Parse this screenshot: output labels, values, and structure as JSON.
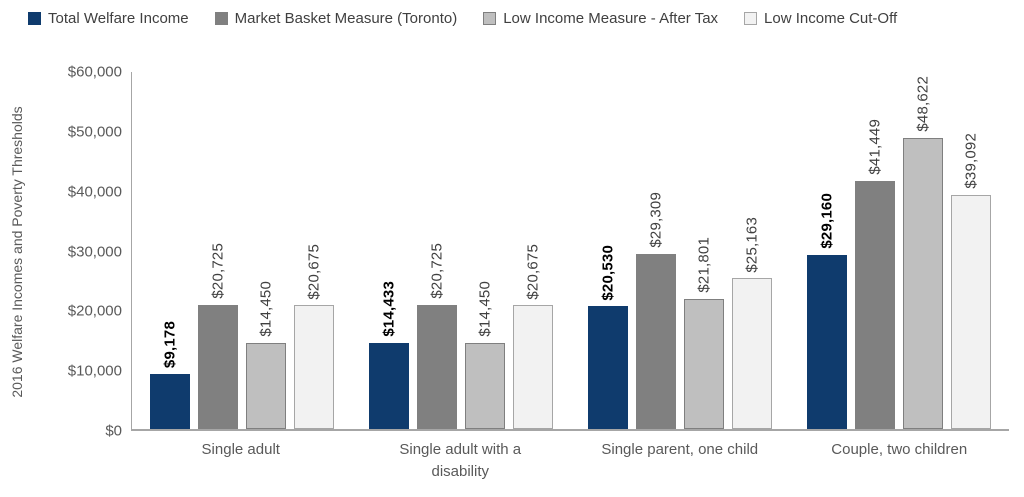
{
  "chart_data": {
    "type": "bar",
    "title": "",
    "xlabel": "",
    "ylabel": "2016 Welfare Incomes and Poverty Thresholds",
    "ylim": [
      0,
      60000
    ],
    "grid": false,
    "legend_position": "top-left",
    "categories": [
      "Single adult",
      "Single adult with a disability",
      "Single parent, one child",
      "Couple, two children"
    ],
    "y_tick_labels": [
      "$0",
      "$10,000",
      "$20,000",
      "$30,000",
      "$40,000",
      "$50,000",
      "$60,000"
    ],
    "series": [
      {
        "name": "Total Welfare Income",
        "color": "#0f3b6d",
        "border": "",
        "emphasized_labels": true,
        "values": [
          9178,
          14433,
          20530,
          29160
        ],
        "labels": [
          "$9,178",
          "$14,433",
          "$20,530",
          "$29,160"
        ]
      },
      {
        "name": "Market Basket Measure (Toronto)",
        "color": "#808080",
        "border": "",
        "emphasized_labels": false,
        "values": [
          20725,
          20725,
          29309,
          41449
        ],
        "labels": [
          "$20,725",
          "$20,725",
          "$29,309",
          "$41,449"
        ]
      },
      {
        "name": "Low Income Measure - After Tax",
        "color": "#bfbfbf",
        "border": "#7f7f7f",
        "emphasized_labels": false,
        "values": [
          14450,
          14450,
          21801,
          48622
        ],
        "labels": [
          "$14,450",
          "$14,450",
          "$21,801",
          "$48,622"
        ]
      },
      {
        "name": "Low Income Cut-Off",
        "color": "#f2f2f2",
        "border": "#a6a6a6",
        "emphasized_labels": false,
        "values": [
          20675,
          20675,
          25163,
          39092
        ],
        "labels": [
          "$20,675",
          "$20,675",
          "$25,163",
          "$39,092"
        ]
      }
    ],
    "colors": {
      "axis": "#a6a6a6",
      "tick_text": "#595959",
      "category_text": "#595959",
      "value_label_text": "#404040",
      "value_label_emphasis": "#000000",
      "legend_text": "#404040",
      "background": "#ffffff"
    }
  }
}
